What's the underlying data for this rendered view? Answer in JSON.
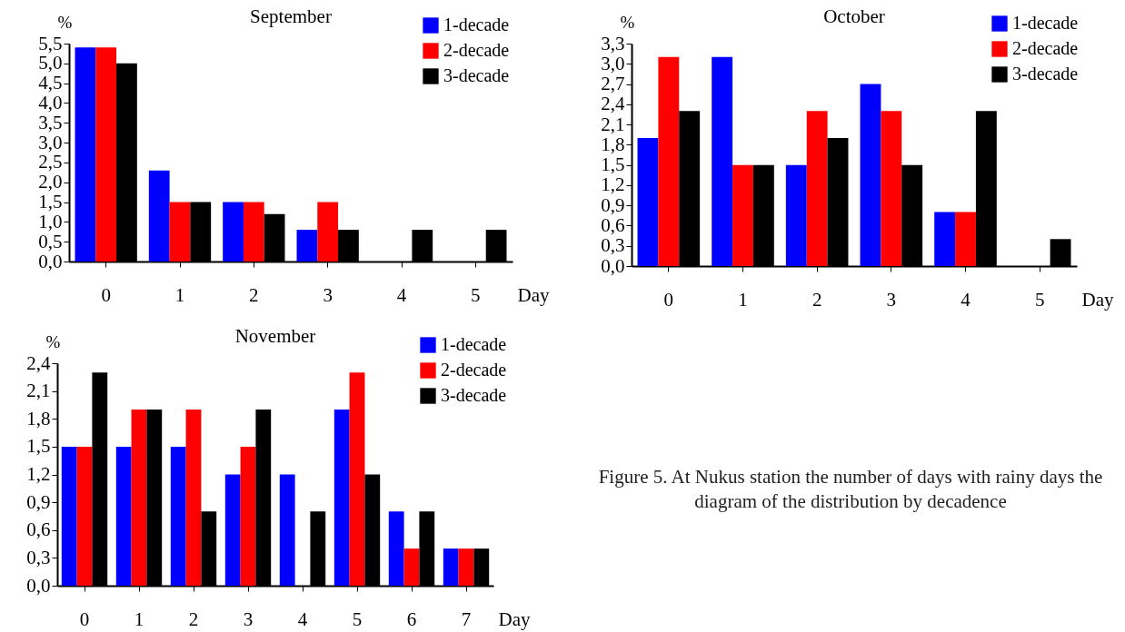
{
  "chart_data": [
    {
      "type": "bar",
      "title": "September",
      "xlabel": "Day",
      "ylabel": "%",
      "categories": [
        "0",
        "1",
        "2",
        "3",
        "4",
        "5"
      ],
      "legend": "top right",
      "grid": false,
      "ylim": [
        0,
        5.5
      ],
      "yticks": [
        {
          "value": 0,
          "label": "0,0"
        },
        {
          "value": 0.5,
          "label": "0,5"
        },
        {
          "value": 1,
          "label": "1,0"
        },
        {
          "value": 1.5,
          "label": "1,5"
        },
        {
          "value": 2,
          "label": "2,0"
        },
        {
          "value": 2.5,
          "label": "2,5"
        },
        {
          "value": 3,
          "label": "3,0"
        },
        {
          "value": 3.5,
          "label": "3,5"
        },
        {
          "value": 4,
          "label": "4,0"
        },
        {
          "value": 4.5,
          "label": "4,5"
        },
        {
          "value": 5,
          "label": "5,0"
        },
        {
          "value": 5.5,
          "label": "5,5"
        }
      ],
      "series": [
        {
          "name": "1-decade",
          "color": "#0000ff",
          "values": [
            5.4,
            2.3,
            1.5,
            0.8,
            0,
            0
          ]
        },
        {
          "name": "2-decade",
          "color": "#ff0000",
          "values": [
            5.4,
            1.5,
            1.5,
            1.5,
            0,
            0
          ]
        },
        {
          "name": "3-decade",
          "color": "#000000",
          "values": [
            5.0,
            1.5,
            1.2,
            0.8,
            0.8,
            0.8
          ]
        }
      ]
    },
    {
      "type": "bar",
      "title": "October",
      "xlabel": "Day",
      "ylabel": "%",
      "categories": [
        "0",
        "1",
        "2",
        "3",
        "4",
        "5"
      ],
      "legend": "top right",
      "grid": false,
      "ylim": [
        0,
        3.3
      ],
      "yticks": [
        {
          "value": 0,
          "label": "0,0"
        },
        {
          "value": 0.3,
          "label": "0,3"
        },
        {
          "value": 0.6,
          "label": "0,6"
        },
        {
          "value": 0.9,
          "label": "0,9"
        },
        {
          "value": 1.2,
          "label": "1,2"
        },
        {
          "value": 1.5,
          "label": "1,5"
        },
        {
          "value": 1.8,
          "label": "1,8"
        },
        {
          "value": 2.1,
          "label": "2,1"
        },
        {
          "value": 2.4,
          "label": "2,4"
        },
        {
          "value": 2.7,
          "label": "2,7"
        },
        {
          "value": 3.0,
          "label": "3,0"
        },
        {
          "value": 3.3,
          "label": "3,3"
        }
      ],
      "series": [
        {
          "name": "1-decade",
          "color": "#0000ff",
          "values": [
            1.9,
            3.1,
            1.5,
            2.7,
            0.8,
            0
          ]
        },
        {
          "name": "2-decade",
          "color": "#ff0000",
          "values": [
            3.1,
            1.5,
            2.3,
            2.3,
            0.8,
            0
          ]
        },
        {
          "name": "3-decade",
          "color": "#000000",
          "values": [
            2.3,
            1.5,
            1.9,
            1.5,
            2.3,
            0.4
          ]
        }
      ]
    },
    {
      "type": "bar",
      "title": "November",
      "xlabel": "Day",
      "ylabel": "%",
      "categories": [
        "0",
        "1",
        "2",
        "3",
        "4",
        "5",
        "6",
        "7"
      ],
      "legend": "top right",
      "grid": false,
      "ylim": [
        0,
        2.4
      ],
      "yticks": [
        {
          "value": 0,
          "label": "0,0"
        },
        {
          "value": 0.3,
          "label": "0,3"
        },
        {
          "value": 0.6,
          "label": "0,6"
        },
        {
          "value": 0.9,
          "label": "0,9"
        },
        {
          "value": 1.2,
          "label": "1,2"
        },
        {
          "value": 1.5,
          "label": "1,5"
        },
        {
          "value": 1.8,
          "label": "1,8"
        },
        {
          "value": 2.1,
          "label": "2,1"
        },
        {
          "value": 2.4,
          "label": "2,4"
        }
      ],
      "series": [
        {
          "name": "1-decade",
          "color": "#0000ff",
          "values": [
            1.5,
            1.5,
            1.5,
            1.2,
            1.2,
            1.9,
            0.8,
            0.4
          ]
        },
        {
          "name": "2-decade",
          "color": "#ff0000",
          "values": [
            1.5,
            1.9,
            1.9,
            1.5,
            0,
            2.3,
            0.4,
            0.4
          ]
        },
        {
          "name": "3-decade",
          "color": "#000000",
          "values": [
            2.3,
            1.9,
            0.8,
            1.9,
            0.8,
            1.2,
            0.8,
            0.4
          ]
        }
      ]
    },
    {
      "type": "other",
      "annotations": [
        "Figure 5. At Nukus station the number of days with rainy days the diagram of the distribution by decadence"
      ]
    }
  ]
}
